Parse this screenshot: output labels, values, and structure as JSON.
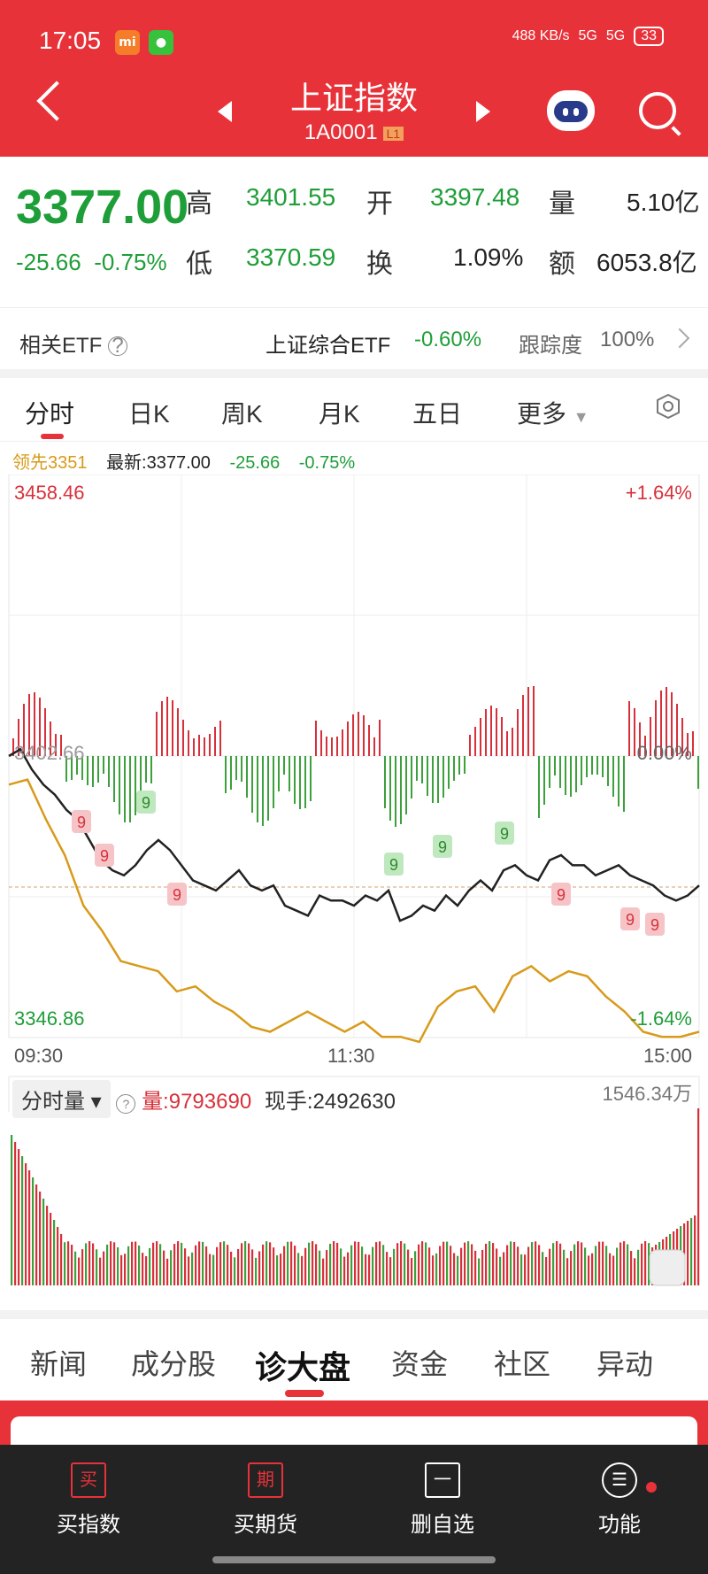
{
  "status": {
    "time": "17:05",
    "net_speed": "488 KB/s",
    "signal1": "5G",
    "signal2": "5G",
    "battery": "33"
  },
  "header": {
    "title": "上证指数",
    "code": "1A0001",
    "level": "L1"
  },
  "quote": {
    "price": "3377.00",
    "change": "-25.66",
    "change_pct": "-0.75%",
    "high_label": "高",
    "high": "3401.55",
    "open_label": "开",
    "open": "3397.48",
    "vol_label": "量",
    "vol": "5.10亿",
    "low_label": "低",
    "low": "3370.59",
    "turnover_label": "换",
    "turnover": "1.09%",
    "amount_label": "额",
    "amount": "6053.8亿"
  },
  "etf": {
    "label": "相关ETF",
    "name": "上证综合ETF",
    "change": "-0.60%",
    "track_label": "跟踪度",
    "track": "100%"
  },
  "tabs": [
    "分时",
    "日K",
    "周K",
    "月K",
    "五日",
    "更多"
  ],
  "legend": {
    "lead": "领先3351",
    "latest": "最新:3377.00",
    "chg": "-25.66",
    "pct": "-0.75%"
  },
  "chart_labels": {
    "top": "3458.46",
    "top_pct": "+1.64%",
    "mid": "3402.66",
    "mid_pct": "0.00%",
    "bottom": "3346.86",
    "bottom_pct": "-1.64%",
    "t1": "09:30",
    "t2": "11:30",
    "t3": "15:00"
  },
  "vol_panel": {
    "btn": "分时量",
    "vol": "量:9793690",
    "hand": "现手:2492630",
    "max": "1546.34万"
  },
  "chart_data": {
    "type": "line",
    "ylim": [
      3346.86,
      3458.46
    ],
    "x_ticks": [
      "09:30",
      "11:30",
      "15:00"
    ],
    "series": [
      {
        "name": "最新",
        "values": [
          3402.66,
          3404,
          3400,
          3397,
          3395,
          3392,
          3390,
          3386,
          3382,
          3380,
          3379,
          3381,
          3384,
          3386,
          3384,
          3381,
          3378,
          3377,
          3376,
          3378,
          3380,
          3377,
          3376,
          3377,
          3373,
          3372,
          3371,
          3375,
          3374,
          3374,
          3373,
          3375,
          3374,
          3376,
          3370,
          3371,
          3373,
          3372,
          3375,
          3373,
          3376,
          3378,
          3376,
          3380,
          3381,
          3379,
          3378,
          3382,
          3383,
          3381,
          3381,
          3379,
          3380,
          3381,
          3379,
          3378,
          3377,
          3375,
          3374,
          3375,
          3377
        ]
      },
      {
        "values": [
          3397,
          3398,
          3390,
          3383,
          3373,
          3368,
          3362,
          3361,
          3360,
          3356,
          3357,
          3354,
          3352,
          3349,
          3348,
          3350,
          3352,
          3350,
          3348,
          3350,
          3347,
          3347,
          3346,
          3353,
          3356,
          3357,
          3352,
          3359,
          3361,
          3358,
          3360,
          3359,
          3355,
          3352,
          3348,
          3347,
          3347,
          3348
        ]
      }
    ],
    "volume_max": "1546.34万"
  },
  "news_tabs": [
    "新闻",
    "成分股",
    "诊大盘",
    "资金",
    "社区",
    "异动"
  ],
  "bottom": [
    {
      "icon": "买",
      "label": "买指数"
    },
    {
      "icon": "期",
      "label": "买期货"
    },
    {
      "icon": "一",
      "label": "删自选"
    },
    {
      "icon": "☰",
      "label": "功能"
    }
  ]
}
